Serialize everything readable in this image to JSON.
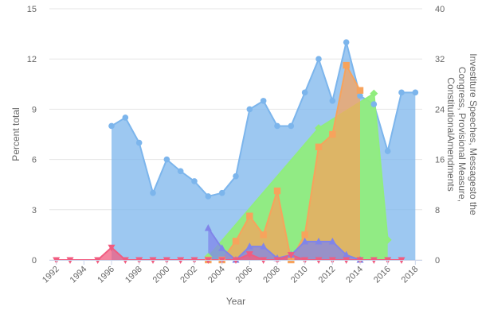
{
  "chart_data": {
    "type": "area",
    "xlabel": "Year",
    "ylabel_left": "Percent total",
    "ylabel_right": "Investiture Speeches, Messagesto the Congress, Provisional Measure, ConstitutionalAmendments",
    "x_ticks": [
      "1992",
      "1994",
      "1996",
      "1998",
      "2000",
      "2002",
      "2004",
      "2006",
      "2008",
      "2010",
      "2012",
      "2014",
      "2016",
      "2018"
    ],
    "x_range": [
      1991.5,
      2018.5
    ],
    "y_left_ticks": [
      "0",
      "3",
      "6",
      "9",
      "12",
      "15"
    ],
    "y_left_range": [
      0,
      15
    ],
    "y_right_ticks": [
      "0",
      "8",
      "16",
      "24",
      "32",
      "40"
    ],
    "y_right_range": [
      0,
      40
    ],
    "grid": true,
    "legend": "none",
    "series": [
      {
        "key": "blue",
        "axis": "left",
        "marker": "circle",
        "color": "#7cb5ec",
        "fill_opacity": 0.75,
        "x": [
          1996,
          1997,
          1998,
          1999,
          2000,
          2001,
          2002,
          2003,
          2004,
          2005,
          2006,
          2007,
          2008,
          2009,
          2010,
          2011,
          2012,
          2013,
          2014,
          2015,
          2016,
          2017,
          2018
        ],
        "y": [
          8.0,
          8.5,
          7.0,
          4.0,
          6.0,
          5.3,
          4.7,
          3.8,
          4.0,
          5.0,
          9.0,
          9.5,
          8.0,
          8.0,
          10.0,
          12.0,
          9.5,
          13.0,
          9.8,
          9.3,
          6.5,
          10.0,
          10.0
        ]
      },
      {
        "key": "green",
        "axis": "right",
        "marker": "diamond",
        "color": "#90ed7d",
        "fill_opacity": 0.95,
        "x": [
          2003,
          2011,
          2015,
          2016
        ],
        "y": [
          0.5,
          21.0,
          26.5,
          3.2
        ]
      },
      {
        "key": "orange",
        "axis": "right",
        "marker": "square",
        "color": "#f7a35c",
        "fill_opacity": 0.75,
        "x": [
          2003,
          2004,
          2005,
          2006,
          2007,
          2008,
          2009,
          2010,
          2011,
          2012,
          2013,
          2014
        ],
        "y": [
          0,
          0,
          3.0,
          7.0,
          4.0,
          11.0,
          0,
          4.0,
          18.0,
          20.0,
          31.0,
          27.0
        ]
      },
      {
        "key": "purple",
        "axis": "left",
        "marker": "triangle",
        "color": "#8085e9",
        "fill_opacity": 0.75,
        "x": [
          2003,
          2004,
          2005,
          2006,
          2007,
          2008,
          2009,
          2010,
          2011,
          2012,
          2013,
          2014
        ],
        "y": [
          1.9,
          0.7,
          0.0,
          0.8,
          0.8,
          0.1,
          0.3,
          1.1,
          1.1,
          1.1,
          0.3,
          0.0
        ]
      },
      {
        "key": "pink",
        "axis": "left",
        "marker": "triangle-down",
        "color": "#f15c80",
        "fill_opacity": 0.75,
        "x": [
          1992,
          1993,
          1995,
          1996,
          1997,
          1998,
          1999,
          2000,
          2001,
          2002,
          2003,
          2004,
          2005,
          2006,
          2007,
          2008,
          2009,
          2010,
          2011,
          2012,
          2013,
          2014,
          2015,
          2016,
          2017
        ],
        "y": [
          0,
          0,
          0,
          0.75,
          0,
          0,
          0,
          0,
          0,
          0,
          0,
          0,
          0,
          0.35,
          0,
          0,
          0.3,
          0,
          0,
          0,
          0,
          0,
          0,
          0,
          0
        ]
      }
    ]
  }
}
